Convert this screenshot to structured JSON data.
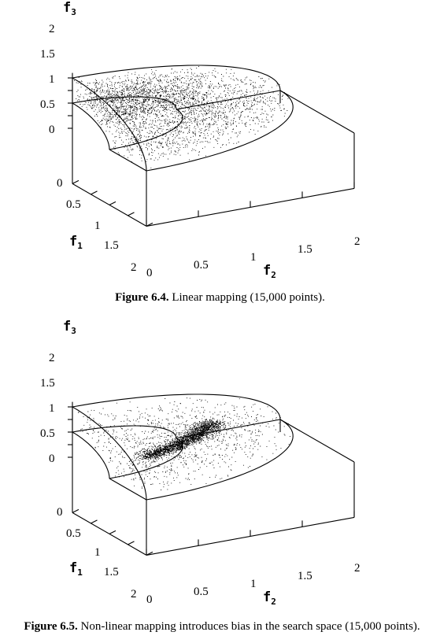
{
  "figures": [
    {
      "caption_label": "Figure 6.4.",
      "caption_text": " Linear mapping (15,000 points).",
      "axis_labels": {
        "f1": "f",
        "f1_sub": "1",
        "f2": "f",
        "f2_sub": "2",
        "f3": "f",
        "f3_sub": "3"
      },
      "f3_ticks": [
        "2",
        "1.5",
        "1",
        "0.5",
        "0"
      ],
      "f1_ticks": [
        "0",
        "0.5",
        "1",
        "1.5",
        "2"
      ],
      "f2_ticks": [
        "0",
        "0.5",
        "1",
        "1.5",
        "2"
      ]
    },
    {
      "caption_label": "Figure 6.5.",
      "caption_text": " Non-linear mapping introduces bias in the search space (15,000 points).",
      "axis_labels": {
        "f1": "f",
        "f1_sub": "1",
        "f2": "f",
        "f2_sub": "2",
        "f3": "f",
        "f3_sub": "3"
      },
      "f3_ticks": [
        "2",
        "1.5",
        "1",
        "0.5",
        "0"
      ],
      "f1_ticks": [
        "0",
        "0.5",
        "1",
        "1.5",
        "2"
      ],
      "f2_ticks": [
        "0",
        "0.5",
        "1",
        "1.5",
        "2"
      ]
    }
  ],
  "chart_data": [
    {
      "type": "scatter",
      "title": "",
      "points": 15000,
      "distribution": "uniform-on-surface",
      "xlabel": "f1",
      "ylabel": "f2",
      "zlabel": "f3",
      "xlim": [
        0,
        2
      ],
      "ylim": [
        0,
        2
      ],
      "zlim": [
        0,
        2
      ]
    },
    {
      "type": "scatter",
      "title": "",
      "points": 15000,
      "distribution": "biased-cluster",
      "xlabel": "f1",
      "ylabel": "f2",
      "zlabel": "f3",
      "xlim": [
        0,
        2
      ],
      "ylim": [
        0,
        2
      ],
      "zlim": [
        0,
        2
      ]
    }
  ]
}
